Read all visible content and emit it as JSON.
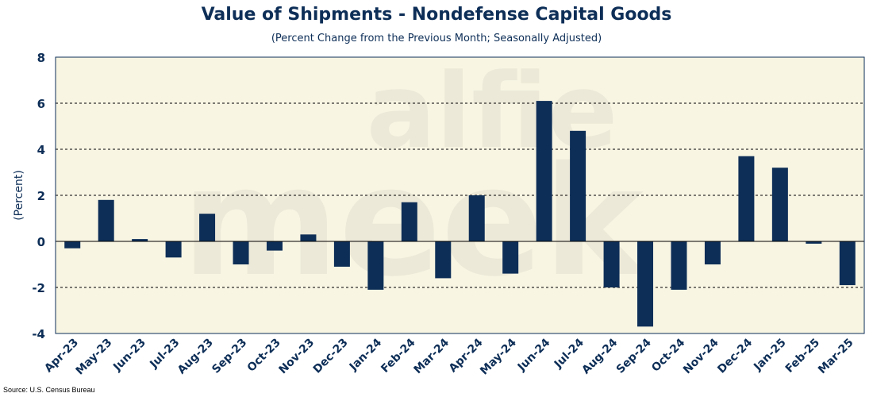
{
  "chart_data": {
    "type": "bar",
    "title": "Value of Shipments - Nondefense Capital Goods",
    "subtitle": "(Percent Change from the Previous Month; Seasonally Adjusted)",
    "ylabel": "(Percent)",
    "xlabel": "",
    "ylim": [
      -4,
      8
    ],
    "yticks": [
      -4,
      -2,
      0,
      2,
      4,
      6,
      8
    ],
    "grid": "horizontal-dashed",
    "categories": [
      "Apr-23",
      "May-23",
      "Jun-23",
      "Jul-23",
      "Aug-23",
      "Sep-23",
      "Oct-23",
      "Nov-23",
      "Dec-23",
      "Jan-24",
      "Feb-24",
      "Mar-24",
      "Apr-24",
      "May-24",
      "Jun-24",
      "Jul-24",
      "Aug-24",
      "Sep-24",
      "Oct-24",
      "Nov-24",
      "Dec-24",
      "Jan-25",
      "Feb-25",
      "Mar-25"
    ],
    "values": [
      -0.3,
      1.8,
      0.1,
      -0.7,
      1.2,
      -1.0,
      -0.4,
      0.3,
      -1.1,
      -2.1,
      1.7,
      -1.6,
      2.0,
      -1.4,
      6.1,
      4.8,
      -2.0,
      -3.7,
      -2.1,
      -1.0,
      3.7,
      3.2,
      -0.1,
      -1.9
    ],
    "bar_color": "#0d2e57",
    "plot_background": "#f8f5e3",
    "source": "Source: U.S. Census Bureau"
  }
}
